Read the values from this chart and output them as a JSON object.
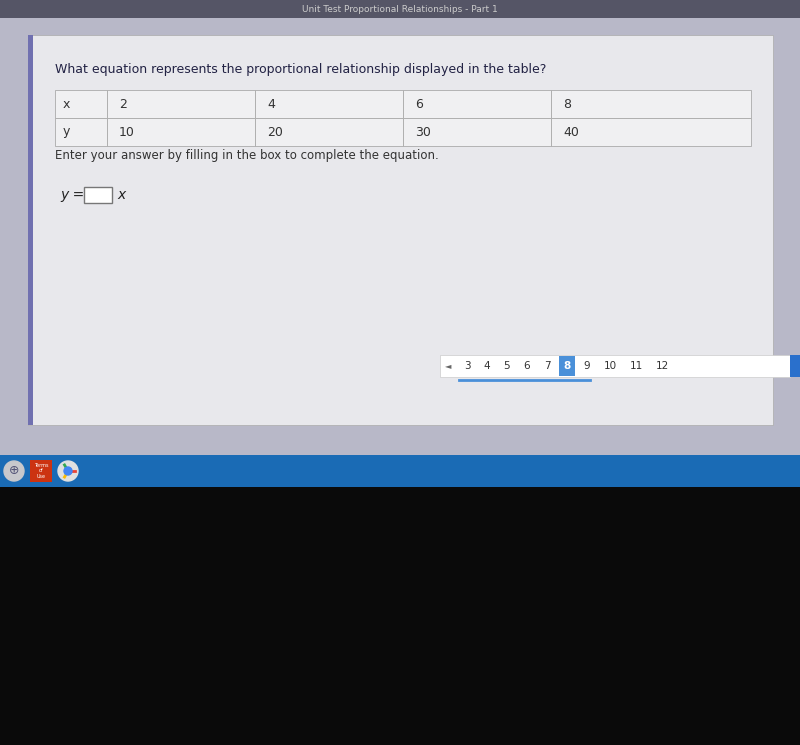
{
  "title_bar_text": "Unit Test Proportional Relationships - Part 1",
  "question_text": "What equation represents the proportional relationship displayed in the table?",
  "table_headers": [
    "x",
    "2",
    "4",
    "6",
    "8"
  ],
  "table_row2": [
    "y",
    "10",
    "20",
    "30",
    "40"
  ],
  "instruction_text": "Enter your answer by filling in the box to complete the equation.",
  "equation_prefix": "y =",
  "equation_suffix": "x",
  "page_numbers": [
    "3",
    "4",
    "5",
    "6",
    "7",
    "8",
    "9",
    "10",
    "11",
    "12"
  ],
  "current_page": "8",
  "screen_bg": "#b8b8c8",
  "title_bar_bg": "#555566",
  "title_bar_text_color": "#cccccc",
  "content_panel_bg": "#dcdce0",
  "white_panel_bg": "#e8e8ec",
  "table_cell_bg": "#f0f0f2",
  "table_border_color": "#aaaaaa",
  "taskbar_bg": "#1a6bb5",
  "black_bottom": "#0a0a0a",
  "page_nav_bg": "#ffffff",
  "page_nav_border": "#cccccc",
  "page_nav_selected_bg": "#4a90d9",
  "page_nav_selected_text": "#ffffff",
  "page_nav_text": "#333333",
  "nav_underline_color": "#4a90d9",
  "blue_right_bar": "#2a70cc",
  "purple_left_bar": "#7070b0",
  "question_text_color": "#222244",
  "body_text_color": "#333333",
  "eq_text_color": "#222222"
}
